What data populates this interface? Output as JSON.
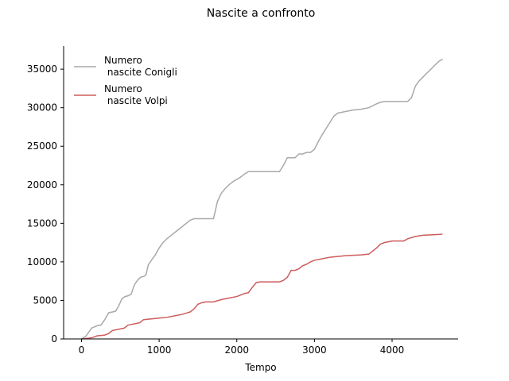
{
  "chart_data": {
    "type": "line",
    "title": "Nascite a confronto",
    "xlabel": "Tempo",
    "ylabel": "",
    "xlim": [
      -230,
      4850
    ],
    "ylim": [
      0,
      38000
    ],
    "xticks": [
      0,
      1000,
      2000,
      3000,
      4000
    ],
    "yticks": [
      0,
      5000,
      10000,
      15000,
      20000,
      25000,
      30000,
      35000
    ],
    "grid": false,
    "legend_position": "top-left",
    "series": [
      {
        "name": "Numero\n nascite Conigli",
        "color": "#a9a9a9",
        "points": [
          [
            0,
            0
          ],
          [
            60,
            400
          ],
          [
            130,
            1400
          ],
          [
            200,
            1700
          ],
          [
            250,
            1800
          ],
          [
            300,
            2500
          ],
          [
            350,
            3400
          ],
          [
            400,
            3500
          ],
          [
            440,
            3600
          ],
          [
            480,
            4300
          ],
          [
            520,
            5200
          ],
          [
            560,
            5500
          ],
          [
            600,
            5600
          ],
          [
            640,
            5800
          ],
          [
            680,
            7000
          ],
          [
            720,
            7600
          ],
          [
            760,
            8000
          ],
          [
            800,
            8100
          ],
          [
            830,
            8300
          ],
          [
            860,
            9600
          ],
          [
            900,
            10200
          ],
          [
            950,
            10900
          ],
          [
            1000,
            11800
          ],
          [
            1050,
            12500
          ],
          [
            1100,
            13000
          ],
          [
            1200,
            13800
          ],
          [
            1300,
            14600
          ],
          [
            1400,
            15400
          ],
          [
            1450,
            15600
          ],
          [
            1500,
            15600
          ],
          [
            1550,
            15600
          ],
          [
            1600,
            15600
          ],
          [
            1650,
            15600
          ],
          [
            1700,
            15600
          ],
          [
            1750,
            17800
          ],
          [
            1800,
            18900
          ],
          [
            1850,
            19500
          ],
          [
            1900,
            20000
          ],
          [
            1950,
            20400
          ],
          [
            2000,
            20700
          ],
          [
            2050,
            21000
          ],
          [
            2100,
            21400
          ],
          [
            2150,
            21700
          ],
          [
            2200,
            21700
          ],
          [
            2300,
            21700
          ],
          [
            2400,
            21700
          ],
          [
            2500,
            21700
          ],
          [
            2550,
            21700
          ],
          [
            2600,
            22500
          ],
          [
            2650,
            23500
          ],
          [
            2700,
            23500
          ],
          [
            2750,
            23500
          ],
          [
            2800,
            24000
          ],
          [
            2850,
            24000
          ],
          [
            2900,
            24200
          ],
          [
            2950,
            24200
          ],
          [
            3000,
            24600
          ],
          [
            3050,
            25600
          ],
          [
            3100,
            26500
          ],
          [
            3150,
            27300
          ],
          [
            3200,
            28100
          ],
          [
            3250,
            28900
          ],
          [
            3300,
            29300
          ],
          [
            3400,
            29500
          ],
          [
            3500,
            29700
          ],
          [
            3600,
            29800
          ],
          [
            3700,
            30000
          ],
          [
            3800,
            30500
          ],
          [
            3850,
            30700
          ],
          [
            3900,
            30800
          ],
          [
            4000,
            30800
          ],
          [
            4100,
            30800
          ],
          [
            4200,
            30800
          ],
          [
            4250,
            31300
          ],
          [
            4300,
            32800
          ],
          [
            4350,
            33500
          ],
          [
            4400,
            34000
          ],
          [
            4500,
            35000
          ],
          [
            4600,
            36000
          ],
          [
            4650,
            36300
          ]
        ]
      },
      {
        "name": "Numero\n nascite Volpi",
        "color": "#cd5c5c",
        "points": [
          [
            0,
            0
          ],
          [
            100,
            100
          ],
          [
            150,
            200
          ],
          [
            200,
            400
          ],
          [
            300,
            500
          ],
          [
            350,
            700
          ],
          [
            400,
            1100
          ],
          [
            450,
            1200
          ],
          [
            500,
            1300
          ],
          [
            550,
            1400
          ],
          [
            600,
            1800
          ],
          [
            650,
            1900
          ],
          [
            700,
            2000
          ],
          [
            750,
            2100
          ],
          [
            800,
            2500
          ],
          [
            900,
            2600
          ],
          [
            1000,
            2700
          ],
          [
            1100,
            2800
          ],
          [
            1200,
            3000
          ],
          [
            1300,
            3200
          ],
          [
            1400,
            3500
          ],
          [
            1450,
            3900
          ],
          [
            1500,
            4500
          ],
          [
            1550,
            4700
          ],
          [
            1600,
            4800
          ],
          [
            1650,
            4800
          ],
          [
            1700,
            4800
          ],
          [
            1800,
            5100
          ],
          [
            1900,
            5300
          ],
          [
            2000,
            5500
          ],
          [
            2050,
            5700
          ],
          [
            2100,
            5900
          ],
          [
            2150,
            6000
          ],
          [
            2200,
            6700
          ],
          [
            2250,
            7300
          ],
          [
            2300,
            7400
          ],
          [
            2400,
            7400
          ],
          [
            2500,
            7400
          ],
          [
            2550,
            7400
          ],
          [
            2600,
            7600
          ],
          [
            2650,
            8000
          ],
          [
            2700,
            8900
          ],
          [
            2750,
            8900
          ],
          [
            2800,
            9100
          ],
          [
            2850,
            9500
          ],
          [
            2900,
            9700
          ],
          [
            2950,
            10000
          ],
          [
            3000,
            10200
          ],
          [
            3100,
            10400
          ],
          [
            3200,
            10600
          ],
          [
            3300,
            10700
          ],
          [
            3400,
            10800
          ],
          [
            3500,
            10850
          ],
          [
            3600,
            10900
          ],
          [
            3700,
            11000
          ],
          [
            3800,
            11800
          ],
          [
            3850,
            12300
          ],
          [
            3900,
            12500
          ],
          [
            4000,
            12700
          ],
          [
            4100,
            12700
          ],
          [
            4150,
            12700
          ],
          [
            4200,
            13000
          ],
          [
            4300,
            13300
          ],
          [
            4400,
            13450
          ],
          [
            4500,
            13500
          ],
          [
            4600,
            13550
          ],
          [
            4650,
            13600
          ]
        ]
      }
    ]
  }
}
